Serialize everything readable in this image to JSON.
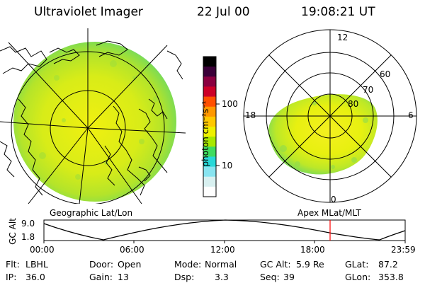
{
  "header": {
    "instrument": "Ultraviolet Imager",
    "date": "22 Jul 00",
    "time": "19:08:21 UT"
  },
  "geographic_panel": {
    "label": "Geographic Lat/Lon"
  },
  "colorbar": {
    "unit_label": "photon cm⁻²s⁻¹",
    "scale": "log",
    "tick_labels": [
      "100",
      "10"
    ],
    "colors_top_to_bottom": [
      "#000000",
      "#3a0038",
      "#8a0040",
      "#cc0028",
      "#ff5000",
      "#ff9800",
      "#ffc800",
      "#eef000",
      "#a8e800",
      "#40dc60",
      "#28d8d8",
      "#88e4f0",
      "#d8f0f0",
      "#ffffff"
    ]
  },
  "apex_panel": {
    "label": "Apex MLat/MLT",
    "mlt_labels": [
      "12",
      "18",
      "6",
      "0"
    ],
    "mlat_labels": [
      "60",
      "70",
      "80"
    ]
  },
  "altitude_plot": {
    "axis_title": "GC Alt",
    "y_ticks": [
      "9.0",
      "1.8"
    ],
    "x_ticks": [
      "00:00",
      "06:00",
      "12:00",
      "18:00",
      "23:59"
    ],
    "current_time_marker_color": "#ff0000"
  },
  "status": {
    "row1": [
      {
        "label": "Flt:",
        "value": "LBHL"
      },
      {
        "label": "Door:",
        "value": "Open"
      },
      {
        "label": "Mode:",
        "value": "Normal"
      },
      {
        "label": "GC Alt:",
        "value": "5.9 Re"
      },
      {
        "label": "GLat:",
        "value": "87.2"
      }
    ],
    "row2": [
      {
        "label": "IP:",
        "value": "36.0"
      },
      {
        "label": "Gain:",
        "value": "13"
      },
      {
        "label": "Dsp:",
        "value": "3.3"
      },
      {
        "label": "Seq:",
        "value": "39"
      },
      {
        "label": "GLon:",
        "value": "353.8"
      }
    ]
  }
}
